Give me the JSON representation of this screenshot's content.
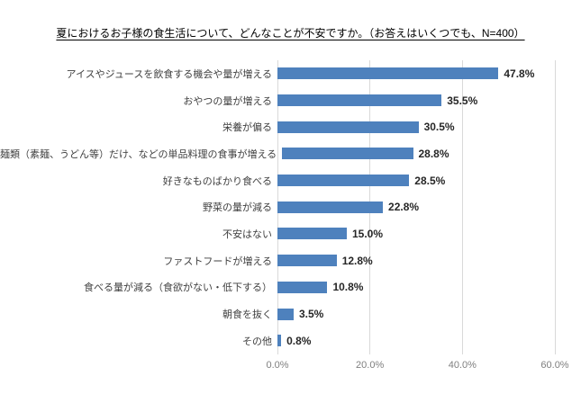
{
  "page": {
    "background": "#ffffff"
  },
  "chart_data": {
    "type": "bar",
    "orientation": "horizontal",
    "title": "夏におけるお子様の食生活について、どんなことが不安ですか。（お答えはいくつでも、N=400）",
    "categories": [
      "アイスやジュースを飲食する機会や量が増える",
      "おやつの量が増える",
      "栄養が偏る",
      "麺類（素麺、うどん等）だけ、などの単品料理の食事が増える",
      "好きなものばかり食べる",
      "野菜の量が減る",
      "不安はない",
      "ファストフードが増える",
      "食べる量が減る（食欲がない・低下する）",
      "朝食を抜く",
      "その他"
    ],
    "values": [
      47.8,
      35.5,
      30.5,
      28.8,
      28.5,
      22.8,
      15.0,
      12.8,
      10.8,
      3.5,
      0.8
    ],
    "value_labels": [
      "47.8%",
      "35.5%",
      "30.5%",
      "28.8%",
      "28.5%",
      "22.8%",
      "15.0%",
      "12.8%",
      "10.8%",
      "3.5%",
      "0.8%"
    ],
    "xlabel": "",
    "ylabel": "",
    "xlim": [
      0,
      60
    ],
    "x_ticks": [
      "0.0%",
      "20.0%",
      "40.0%",
      "60.0%"
    ],
    "grid": true,
    "legend": "none",
    "bar_color": "#4e81bd",
    "gridline_color": "#d9d9d9"
  }
}
